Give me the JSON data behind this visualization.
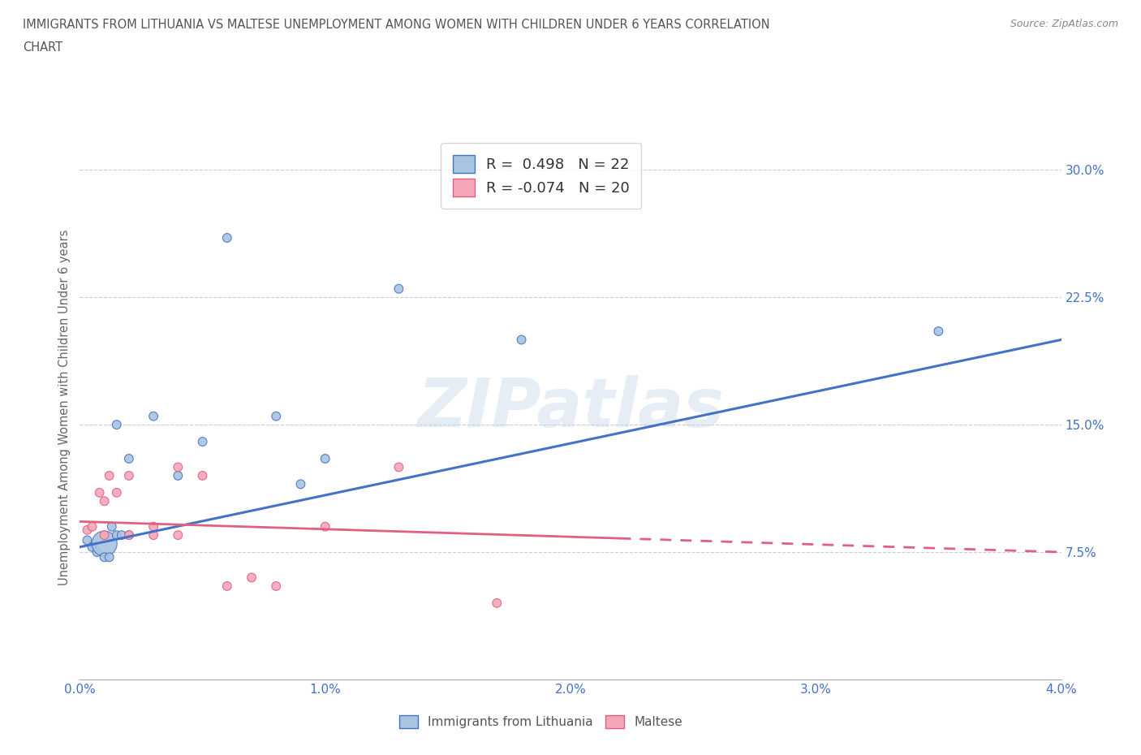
{
  "title_line1": "IMMIGRANTS FROM LITHUANIA VS MALTESE UNEMPLOYMENT AMONG WOMEN WITH CHILDREN UNDER 6 YEARS CORRELATION",
  "title_line2": "CHART",
  "source": "Source: ZipAtlas.com",
  "ylabel": "Unemployment Among Women with Children Under 6 years",
  "xlim": [
    0.0,
    0.04
  ],
  "ylim": [
    0.0,
    0.32
  ],
  "yticks": [
    0.075,
    0.15,
    0.225,
    0.3
  ],
  "ytick_labels": [
    "7.5%",
    "15.0%",
    "22.5%",
    "30.0%"
  ],
  "xticks": [
    0.0,
    0.01,
    0.02,
    0.03,
    0.04
  ],
  "xtick_labels": [
    "0.0%",
    "1.0%",
    "2.0%",
    "3.0%",
    "4.0%"
  ],
  "blue_R": 0.498,
  "blue_N": 22,
  "pink_R": -0.074,
  "pink_N": 20,
  "blue_color": "#a8c4e0",
  "blue_line_color": "#4472c4",
  "pink_color": "#f4a7b9",
  "pink_line_color": "#e06080",
  "watermark": "ZIPatlas",
  "blue_scatter_x": [
    0.0003,
    0.0005,
    0.0007,
    0.001,
    0.001,
    0.0012,
    0.0013,
    0.0015,
    0.0015,
    0.0017,
    0.002,
    0.002,
    0.003,
    0.004,
    0.005,
    0.006,
    0.008,
    0.009,
    0.01,
    0.013,
    0.018,
    0.035
  ],
  "blue_scatter_y": [
    0.082,
    0.078,
    0.075,
    0.08,
    0.072,
    0.072,
    0.09,
    0.15,
    0.085,
    0.085,
    0.13,
    0.085,
    0.155,
    0.12,
    0.14,
    0.26,
    0.155,
    0.115,
    0.13,
    0.23,
    0.2,
    0.205
  ],
  "blue_scatter_size": [
    60,
    60,
    60,
    500,
    60,
    60,
    60,
    60,
    60,
    60,
    60,
    60,
    60,
    60,
    60,
    60,
    60,
    60,
    60,
    60,
    60,
    60
  ],
  "pink_scatter_x": [
    0.0003,
    0.0005,
    0.0008,
    0.001,
    0.001,
    0.0012,
    0.0015,
    0.002,
    0.002,
    0.003,
    0.003,
    0.004,
    0.004,
    0.005,
    0.006,
    0.007,
    0.008,
    0.01,
    0.013,
    0.017
  ],
  "pink_scatter_y": [
    0.088,
    0.09,
    0.11,
    0.085,
    0.105,
    0.12,
    0.11,
    0.12,
    0.085,
    0.09,
    0.085,
    0.125,
    0.085,
    0.12,
    0.055,
    0.06,
    0.055,
    0.09,
    0.125,
    0.045
  ],
  "pink_scatter_size": [
    60,
    60,
    60,
    60,
    60,
    60,
    60,
    60,
    60,
    60,
    60,
    60,
    60,
    60,
    60,
    60,
    60,
    60,
    60,
    60
  ],
  "blue_trend_x0": 0.0,
  "blue_trend_x1": 0.04,
  "blue_trend_y0": 0.078,
  "blue_trend_y1": 0.2,
  "pink_trend_x0": 0.0,
  "pink_trend_x1": 0.04,
  "pink_trend_y0": 0.093,
  "pink_trend_y1": 0.075,
  "pink_trend_dashed_start": 0.022,
  "background_color": "#ffffff",
  "grid_color": "#cccccc",
  "title_color": "#555555",
  "axis_color": "#4472c4",
  "ylabel_color": "#666666"
}
